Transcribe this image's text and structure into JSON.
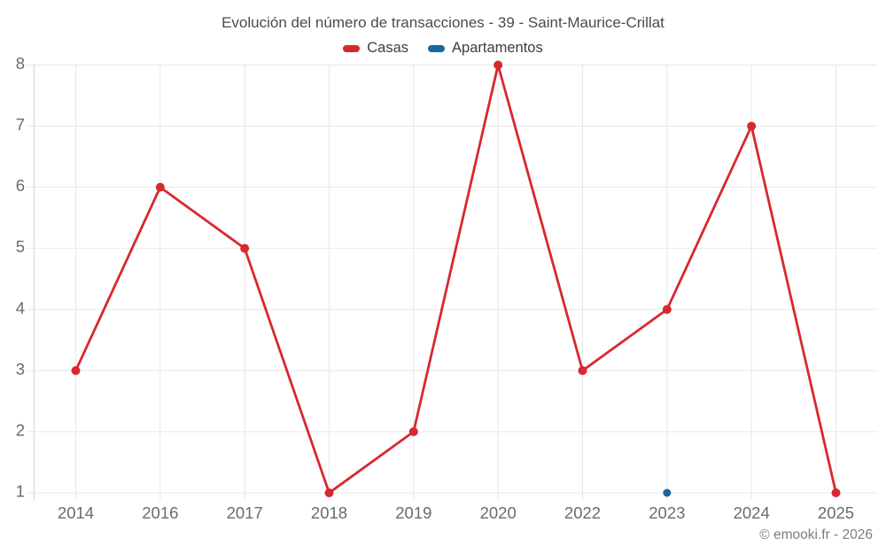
{
  "page": {
    "copyright": "© emooki.fr - 2026"
  },
  "chart_data": {
    "type": "line",
    "title": "Evolución del número de transacciones - 39 - Saint-Maurice-Crillat",
    "categories": [
      "2014",
      "2016",
      "2017",
      "2018",
      "2019",
      "2020",
      "2022",
      "2023",
      "2024",
      "2025"
    ],
    "series": [
      {
        "name": "Casas",
        "color": "#d7282f",
        "marker_radius": 5,
        "values": [
          3,
          6,
          5,
          1,
          2,
          8,
          3,
          4,
          7,
          1
        ]
      },
      {
        "name": "Apartamentos",
        "color": "#17699e",
        "marker_radius": 4.5,
        "values": [
          null,
          null,
          null,
          null,
          null,
          null,
          null,
          1,
          null,
          null
        ]
      }
    ],
    "xlabel": "",
    "ylabel": "",
    "ylim": [
      1,
      8
    ],
    "yticks": [
      1,
      2,
      3,
      4,
      5,
      6,
      7,
      8
    ],
    "grid": true,
    "legend_position": "top",
    "colors": {
      "grid": "#e7e7e7",
      "axis": "#d9d9d9",
      "tick_label": "#6b6b6b",
      "title": "#4b4b4b"
    }
  }
}
